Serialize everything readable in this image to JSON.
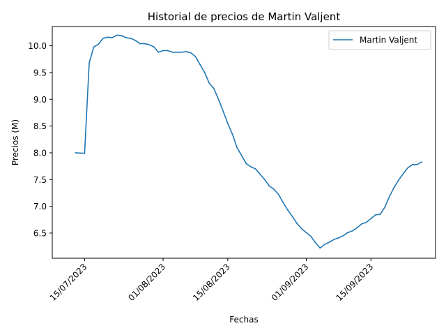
{
  "chart_data": {
    "type": "line",
    "title": "Historial de precios de Martin Valjent",
    "xlabel": "Fechas",
    "ylabel": "Precios (M)",
    "legend_position": "top-right",
    "grid": false,
    "x_ticks": [
      "15/07/2023",
      "01/08/2023",
      "15/08/2023",
      "01/09/2023",
      "15/09/2023"
    ],
    "y_ticks": [
      "6.5",
      "7.0",
      "7.5",
      "8.0",
      "8.5",
      "9.0",
      "9.5",
      "10.0"
    ],
    "ylim": [
      6.03,
      10.36
    ],
    "xlim": [
      "2023-07-08",
      "2023-09-29"
    ],
    "series": [
      {
        "name": "Martin Valjent",
        "color": "#1f77b4",
        "points": [
          [
            "2023-07-13",
            8.0
          ],
          [
            "2023-07-15",
            7.99
          ],
          [
            "2023-07-16",
            9.68
          ],
          [
            "2023-07-17",
            9.98
          ],
          [
            "2023-07-18",
            10.03
          ],
          [
            "2023-07-19",
            10.14
          ],
          [
            "2023-07-20",
            10.16
          ],
          [
            "2023-07-21",
            10.15
          ],
          [
            "2023-07-22",
            10.2
          ],
          [
            "2023-07-23",
            10.19
          ],
          [
            "2023-07-24",
            10.15
          ],
          [
            "2023-07-25",
            10.14
          ],
          [
            "2023-07-26",
            10.1
          ],
          [
            "2023-07-27",
            10.04
          ],
          [
            "2023-07-28",
            10.04
          ],
          [
            "2023-07-29",
            10.02
          ],
          [
            "2023-07-30",
            9.98
          ],
          [
            "2023-07-31",
            9.88
          ],
          [
            "2023-08-01",
            9.91
          ],
          [
            "2023-08-02",
            9.91
          ],
          [
            "2023-08-03",
            9.88
          ],
          [
            "2023-08-04",
            9.88
          ],
          [
            "2023-08-05",
            9.88
          ],
          [
            "2023-08-06",
            9.89
          ],
          [
            "2023-08-07",
            9.87
          ],
          [
            "2023-08-08",
            9.8
          ],
          [
            "2023-08-09",
            9.65
          ],
          [
            "2023-08-10",
            9.5
          ],
          [
            "2023-08-11",
            9.3
          ],
          [
            "2023-08-12",
            9.2
          ],
          [
            "2023-08-13",
            9.0
          ],
          [
            "2023-08-14",
            8.78
          ],
          [
            "2023-08-15",
            8.55
          ],
          [
            "2023-08-16",
            8.35
          ],
          [
            "2023-08-17",
            8.1
          ],
          [
            "2023-08-18",
            7.95
          ],
          [
            "2023-08-19",
            7.8
          ],
          [
            "2023-08-20",
            7.74
          ],
          [
            "2023-08-21",
            7.7
          ],
          [
            "2023-08-22",
            7.6
          ],
          [
            "2023-08-23",
            7.5
          ],
          [
            "2023-08-24",
            7.38
          ],
          [
            "2023-08-25",
            7.32
          ],
          [
            "2023-08-26",
            7.22
          ],
          [
            "2023-08-27",
            7.07
          ],
          [
            "2023-08-28",
            6.93
          ],
          [
            "2023-08-29",
            6.81
          ],
          [
            "2023-08-30",
            6.68
          ],
          [
            "2023-08-31",
            6.58
          ],
          [
            "2023-09-01",
            6.51
          ],
          [
            "2023-09-02",
            6.44
          ],
          [
            "2023-09-03",
            6.32
          ],
          [
            "2023-09-04",
            6.22
          ],
          [
            "2023-09-05",
            6.29
          ],
          [
            "2023-09-06",
            6.33
          ],
          [
            "2023-09-07",
            6.38
          ],
          [
            "2023-09-08",
            6.41
          ],
          [
            "2023-09-09",
            6.45
          ],
          [
            "2023-09-10",
            6.51
          ],
          [
            "2023-09-11",
            6.54
          ],
          [
            "2023-09-12",
            6.6
          ],
          [
            "2023-09-13",
            6.67
          ],
          [
            "2023-09-14",
            6.7
          ],
          [
            "2023-09-15",
            6.77
          ],
          [
            "2023-09-16",
            6.84
          ],
          [
            "2023-09-17",
            6.85
          ],
          [
            "2023-09-18",
            6.98
          ],
          [
            "2023-09-19",
            7.18
          ],
          [
            "2023-09-20",
            7.35
          ],
          [
            "2023-09-21",
            7.49
          ],
          [
            "2023-09-22",
            7.61
          ],
          [
            "2023-09-23",
            7.72
          ],
          [
            "2023-09-24",
            7.78
          ],
          [
            "2023-09-25",
            7.78
          ],
          [
            "2023-09-26",
            7.83
          ]
        ]
      }
    ]
  }
}
